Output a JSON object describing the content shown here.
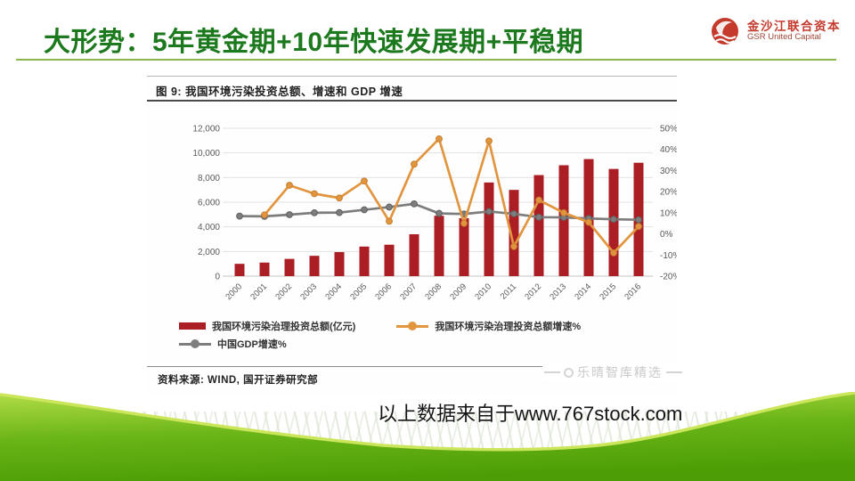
{
  "header": {
    "title": "大形势：5年黄金期+10年快速发展期+平稳期",
    "title_color": "#1d791d",
    "logo": {
      "name_cn": "金沙江联合资本",
      "name_en": "GSR United Capital",
      "brand_color": "#c43b2d"
    }
  },
  "figure": {
    "title": "图 9:  我国环境污染投资总额、增速和 GDP 增速",
    "source": "资料来源: WIND, 国开证券研究部",
    "watermark": "乐晴智库精选"
  },
  "footer": {
    "attribution": "以上数据来自于www.767stock.com"
  },
  "chart_data": {
    "type": "bar",
    "subtype": "combo bar + two lines, dual axis",
    "title": "图 9: 我国环境污染投资总额、增速和 GDP 增速",
    "categories": [
      "2000",
      "2001",
      "2002",
      "2003",
      "2004",
      "2005",
      "2006",
      "2007",
      "2008",
      "2009",
      "2010",
      "2011",
      "2012",
      "2013",
      "2014",
      "2015",
      "2016"
    ],
    "series": [
      {
        "name": "我国环境污染治理投资总额(亿元)",
        "type": "bar",
        "axis": "left",
        "color": "#AB1E24",
        "values": [
          1000,
          1100,
          1400,
          1650,
          1950,
          2400,
          2550,
          3400,
          4900,
          4700,
          7600,
          7000,
          8200,
          9000,
          9500,
          8700,
          9200
        ]
      },
      {
        "name": "我国环境污染治理投资总额增速%",
        "type": "line",
        "axis": "right",
        "color": "#E2953F",
        "marker_edge": "#c77f2f",
        "values": [
          null,
          9,
          23,
          19,
          17,
          25,
          6,
          33,
          45,
          5,
          44,
          -6,
          16,
          10,
          5.5,
          -9,
          3.5
        ]
      },
      {
        "name": "中国GDP增速%",
        "type": "line",
        "axis": "right",
        "color": "#7D7D7D",
        "marker_edge": "#5f5f5f",
        "values": [
          8.4,
          8.3,
          9.1,
          10.0,
          10.1,
          11.4,
          12.7,
          14.2,
          9.7,
          9.4,
          10.6,
          9.5,
          7.9,
          7.8,
          7.3,
          6.9,
          6.7
        ]
      }
    ],
    "left_axis": {
      "min": 0,
      "max": 12000,
      "ticks": [
        "12,000",
        "10,000",
        "8,000",
        "6,000",
        "4,000",
        "2,000",
        "0"
      ]
    },
    "right_axis": {
      "min": -20,
      "max": 50,
      "ticks": [
        "50%",
        "40%",
        "30%",
        "20%",
        "10%",
        "0%",
        "-10%",
        "-20%"
      ]
    },
    "grid": true,
    "legend_position": "bottom",
    "xlabel": "",
    "ylabel": ""
  }
}
